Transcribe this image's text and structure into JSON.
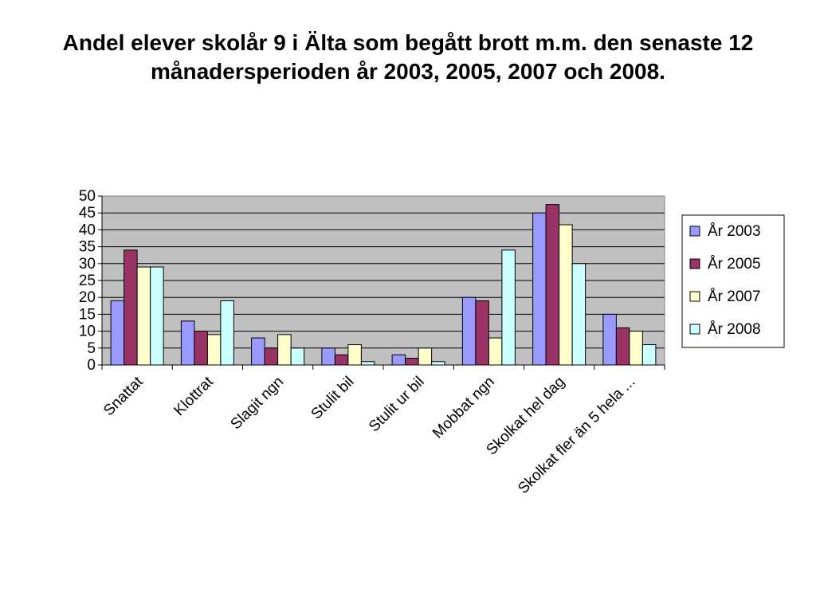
{
  "title": "Andel elever skolår 9 i Älta som begått brott m.m. den senaste 12 månadersperioden år 2003, 2005, 2007 och 2008.",
  "chart_data": {
    "type": "bar",
    "title": "Andel elever skolår 9 i Älta som begått brott m.m. den senaste 12 månadersperioden år 2003, 2005, 2007 och 2008.",
    "xlabel": "",
    "ylabel": "",
    "ylim": [
      0,
      50
    ],
    "yticks": [
      0,
      5,
      10,
      15,
      20,
      25,
      30,
      35,
      40,
      45,
      50
    ],
    "grid": true,
    "legend_position": "right",
    "categories": [
      "Snattat",
      "Klottrat",
      "Slagit ngn",
      "Stulit bil",
      "Stulit ur bil",
      "Mobbat ngn",
      "Skolkat hel dag",
      "Skolkat fler än 5 hela ..."
    ],
    "series": [
      {
        "name": "År 2003",
        "color": "#9999ff",
        "values": [
          19,
          13,
          8,
          5,
          3,
          20,
          45,
          15
        ]
      },
      {
        "name": "År 2005",
        "color": "#993366",
        "values": [
          34,
          10,
          5,
          3,
          2,
          19,
          47.5,
          11
        ]
      },
      {
        "name": "År 2007",
        "color": "#ffffcc",
        "values": [
          29,
          9,
          9,
          6,
          5,
          8,
          41.5,
          10
        ]
      },
      {
        "name": "År 2008",
        "color": "#ccffff",
        "values": [
          29,
          19,
          5,
          1,
          1,
          34,
          30,
          6
        ]
      }
    ]
  },
  "colors": {
    "plot_background": "#c0c0c0",
    "gridline": "#000000",
    "bar_border": "#000000"
  }
}
